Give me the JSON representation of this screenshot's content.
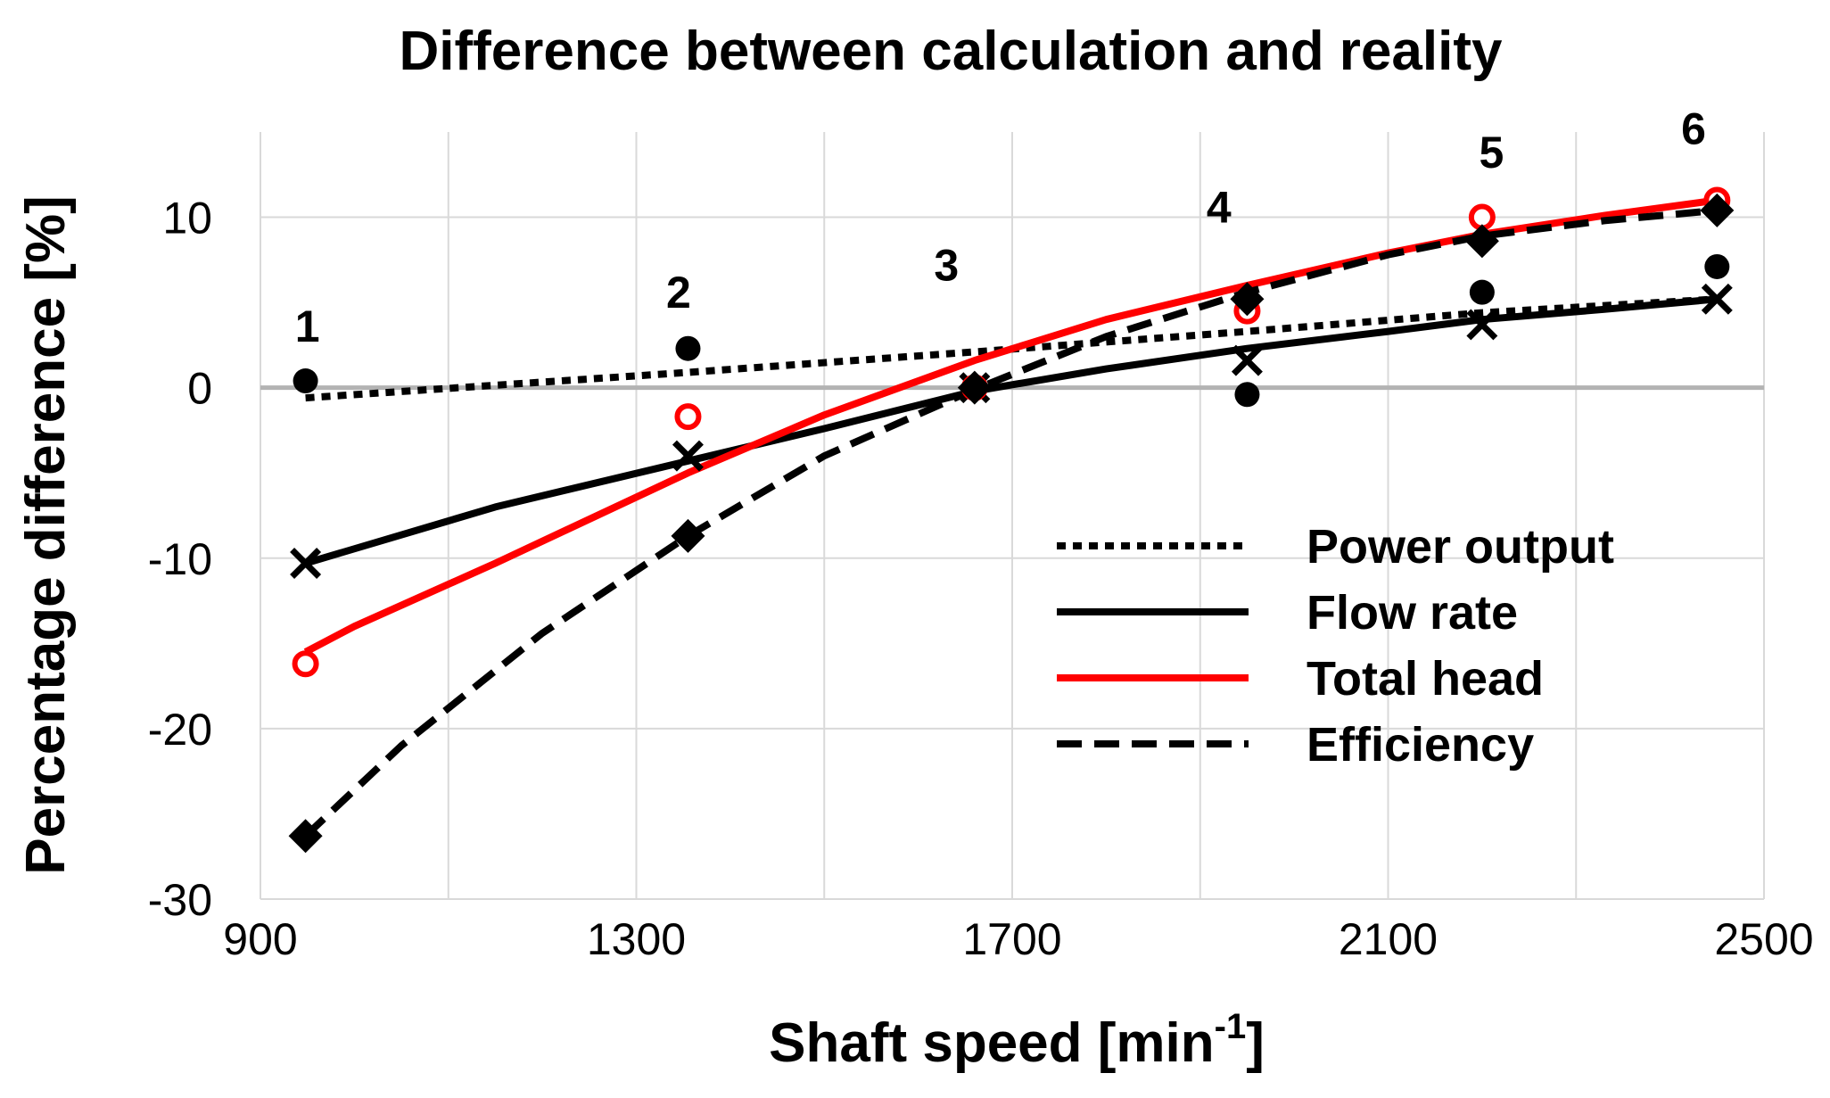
{
  "chart_data": {
    "type": "line",
    "title": "Difference between calculation and reality",
    "xlabel_main": "Shaft speed [min",
    "xlabel_sup": "-1",
    "xlabel_end": "]",
    "ylabel": "Percentage difference [%]",
    "xlim": [
      900,
      2500
    ],
    "ylim": [
      -30,
      15
    ],
    "xticks": [
      900,
      1300,
      1700,
      2100,
      2500
    ],
    "xtick_labels": [
      "900",
      "1300",
      "1700",
      "2100",
      "2500"
    ],
    "yticks": [
      -30,
      -20,
      -10,
      0,
      10
    ],
    "ytick_labels": [
      "-30",
      "-20",
      "-10",
      "0",
      "10"
    ],
    "x_gridlines": [
      900,
      1100,
      1300,
      1500,
      1700,
      1900,
      2100,
      2300,
      2500
    ],
    "y_gridlines": [
      -30,
      -20,
      -10,
      0,
      10
    ],
    "point_labels": [
      {
        "text": "1",
        "x": 950,
        "y": 2.7
      },
      {
        "text": "2",
        "x": 1345,
        "y": 4.7
      },
      {
        "text": "3",
        "x": 1630,
        "y": 6.3
      },
      {
        "text": "4",
        "x": 1920,
        "y": 9.7
      },
      {
        "text": "5",
        "x": 2210,
        "y": 12.9
      },
      {
        "text": "6",
        "x": 2425,
        "y": 14.3
      }
    ],
    "series": [
      {
        "name": "Power output",
        "color": "#000000",
        "line_style": "dotted",
        "marker": "circle",
        "marker_color": "#000000",
        "points": [
          [
            948,
            0.4
          ],
          [
            1355,
            2.3
          ],
          [
            1660,
            0.0
          ],
          [
            1950,
            -0.4
          ],
          [
            2200,
            5.6
          ],
          [
            2450,
            7.1
          ]
        ],
        "trend": [
          [
            948,
            -0.6
          ],
          [
            1355,
            0.9
          ],
          [
            1660,
            2.1
          ],
          [
            1950,
            3.3
          ],
          [
            2200,
            4.4
          ],
          [
            2450,
            5.2
          ]
        ]
      },
      {
        "name": "Flow rate",
        "color": "#000000",
        "line_style": "solid",
        "marker": "x",
        "marker_color": "#000000",
        "points": [
          [
            948,
            -10.3
          ],
          [
            1355,
            -4.0
          ],
          [
            1660,
            0.0
          ],
          [
            1950,
            1.6
          ],
          [
            2200,
            3.7
          ],
          [
            2450,
            5.2
          ]
        ],
        "trend": [
          [
            948,
            -10.3
          ],
          [
            1150,
            -7.0
          ],
          [
            1355,
            -4.3
          ],
          [
            1500,
            -2.4
          ],
          [
            1660,
            -0.2
          ],
          [
            1800,
            1.1
          ],
          [
            1950,
            2.3
          ],
          [
            2100,
            3.3
          ],
          [
            2200,
            4.0
          ],
          [
            2330,
            4.6
          ],
          [
            2450,
            5.2
          ]
        ]
      },
      {
        "name": "Total head",
        "color": "#ff0000",
        "line_style": "solid",
        "marker": "open-circle",
        "marker_color": "#ff0000",
        "points": [
          [
            948,
            -16.2
          ],
          [
            1355,
            -1.7
          ],
          [
            1660,
            0.0
          ],
          [
            1950,
            4.5
          ],
          [
            2200,
            10.0
          ],
          [
            2450,
            11.0
          ]
        ],
        "trend": [
          [
            948,
            -15.5
          ],
          [
            1000,
            -14.0
          ],
          [
            1150,
            -10.3
          ],
          [
            1355,
            -5.0
          ],
          [
            1500,
            -1.6
          ],
          [
            1660,
            1.6
          ],
          [
            1800,
            4.0
          ],
          [
            1950,
            6.0
          ],
          [
            2100,
            7.9
          ],
          [
            2200,
            9.0
          ],
          [
            2330,
            10.1
          ],
          [
            2450,
            11.0
          ]
        ]
      },
      {
        "name": "Efficiency",
        "color": "#000000",
        "line_style": "dashed",
        "marker": "diamond",
        "marker_color": "#000000",
        "points": [
          [
            948,
            -26.3
          ],
          [
            1355,
            -8.7
          ],
          [
            1660,
            0.0
          ],
          [
            1950,
            5.2
          ],
          [
            2200,
            8.6
          ],
          [
            2450,
            10.4
          ]
        ],
        "trend": [
          [
            948,
            -26.3
          ],
          [
            1050,
            -21.0
          ],
          [
            1200,
            -14.4
          ],
          [
            1355,
            -8.7
          ],
          [
            1500,
            -4.0
          ],
          [
            1660,
            -0.1
          ],
          [
            1800,
            3.0
          ],
          [
            1950,
            5.6
          ],
          [
            2100,
            7.8
          ],
          [
            2200,
            8.9
          ],
          [
            2330,
            9.8
          ],
          [
            2450,
            10.4
          ]
        ]
      }
    ],
    "legend": {
      "position": "bottom-right",
      "entries": [
        "Power output",
        "Flow rate",
        "Total head",
        "Efficiency"
      ]
    }
  }
}
